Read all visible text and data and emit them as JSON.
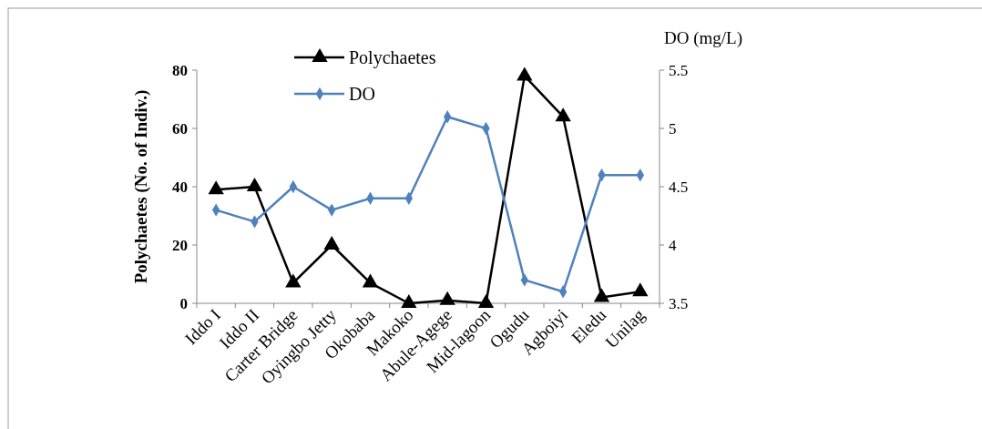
{
  "chart_data": {
    "type": "line",
    "ylabel": "Polychaetes (No. of Indiv.)",
    "y2label": "DO (mg/L)",
    "categories": [
      "Iddo I",
      "Iddo II",
      "Carter Bridge",
      "Oyingbo Jetty",
      "Okobaba",
      "Makoko",
      "Abule-Agege",
      "Mid-lagoon",
      "Ogudu",
      "Agboiyi",
      "Eledu",
      "Unilag"
    ],
    "series": [
      {
        "name": "Polychaetes",
        "color": "#000000",
        "marker": "triangle",
        "values": [
          39,
          40,
          7,
          20,
          7,
          0,
          1,
          0,
          78,
          64,
          2,
          4
        ]
      },
      {
        "name": "DO",
        "color": "#4f81bd",
        "marker": "diamond",
        "axis": "y2",
        "values": [
          4.3,
          4.2,
          4.5,
          4.3,
          4.4,
          4.4,
          5.1,
          5.0,
          3.7,
          3.6,
          4.6,
          4.6
        ]
      }
    ],
    "ylim": [
      0,
      80
    ],
    "yticks": [
      0,
      20,
      40,
      60,
      80
    ],
    "y2lim": [
      3.5,
      5.5
    ],
    "y2ticks": [
      {
        "value": 3.5,
        "label": "3.5"
      },
      {
        "value": 4,
        "label": "4"
      },
      {
        "value": 4.5,
        "label": "4.5"
      },
      {
        "value": 5,
        "label": "5"
      },
      {
        "value": 5.5,
        "label": "5.5"
      }
    ],
    "legend": "top",
    "grid": false,
    "line_style": "solid"
  }
}
